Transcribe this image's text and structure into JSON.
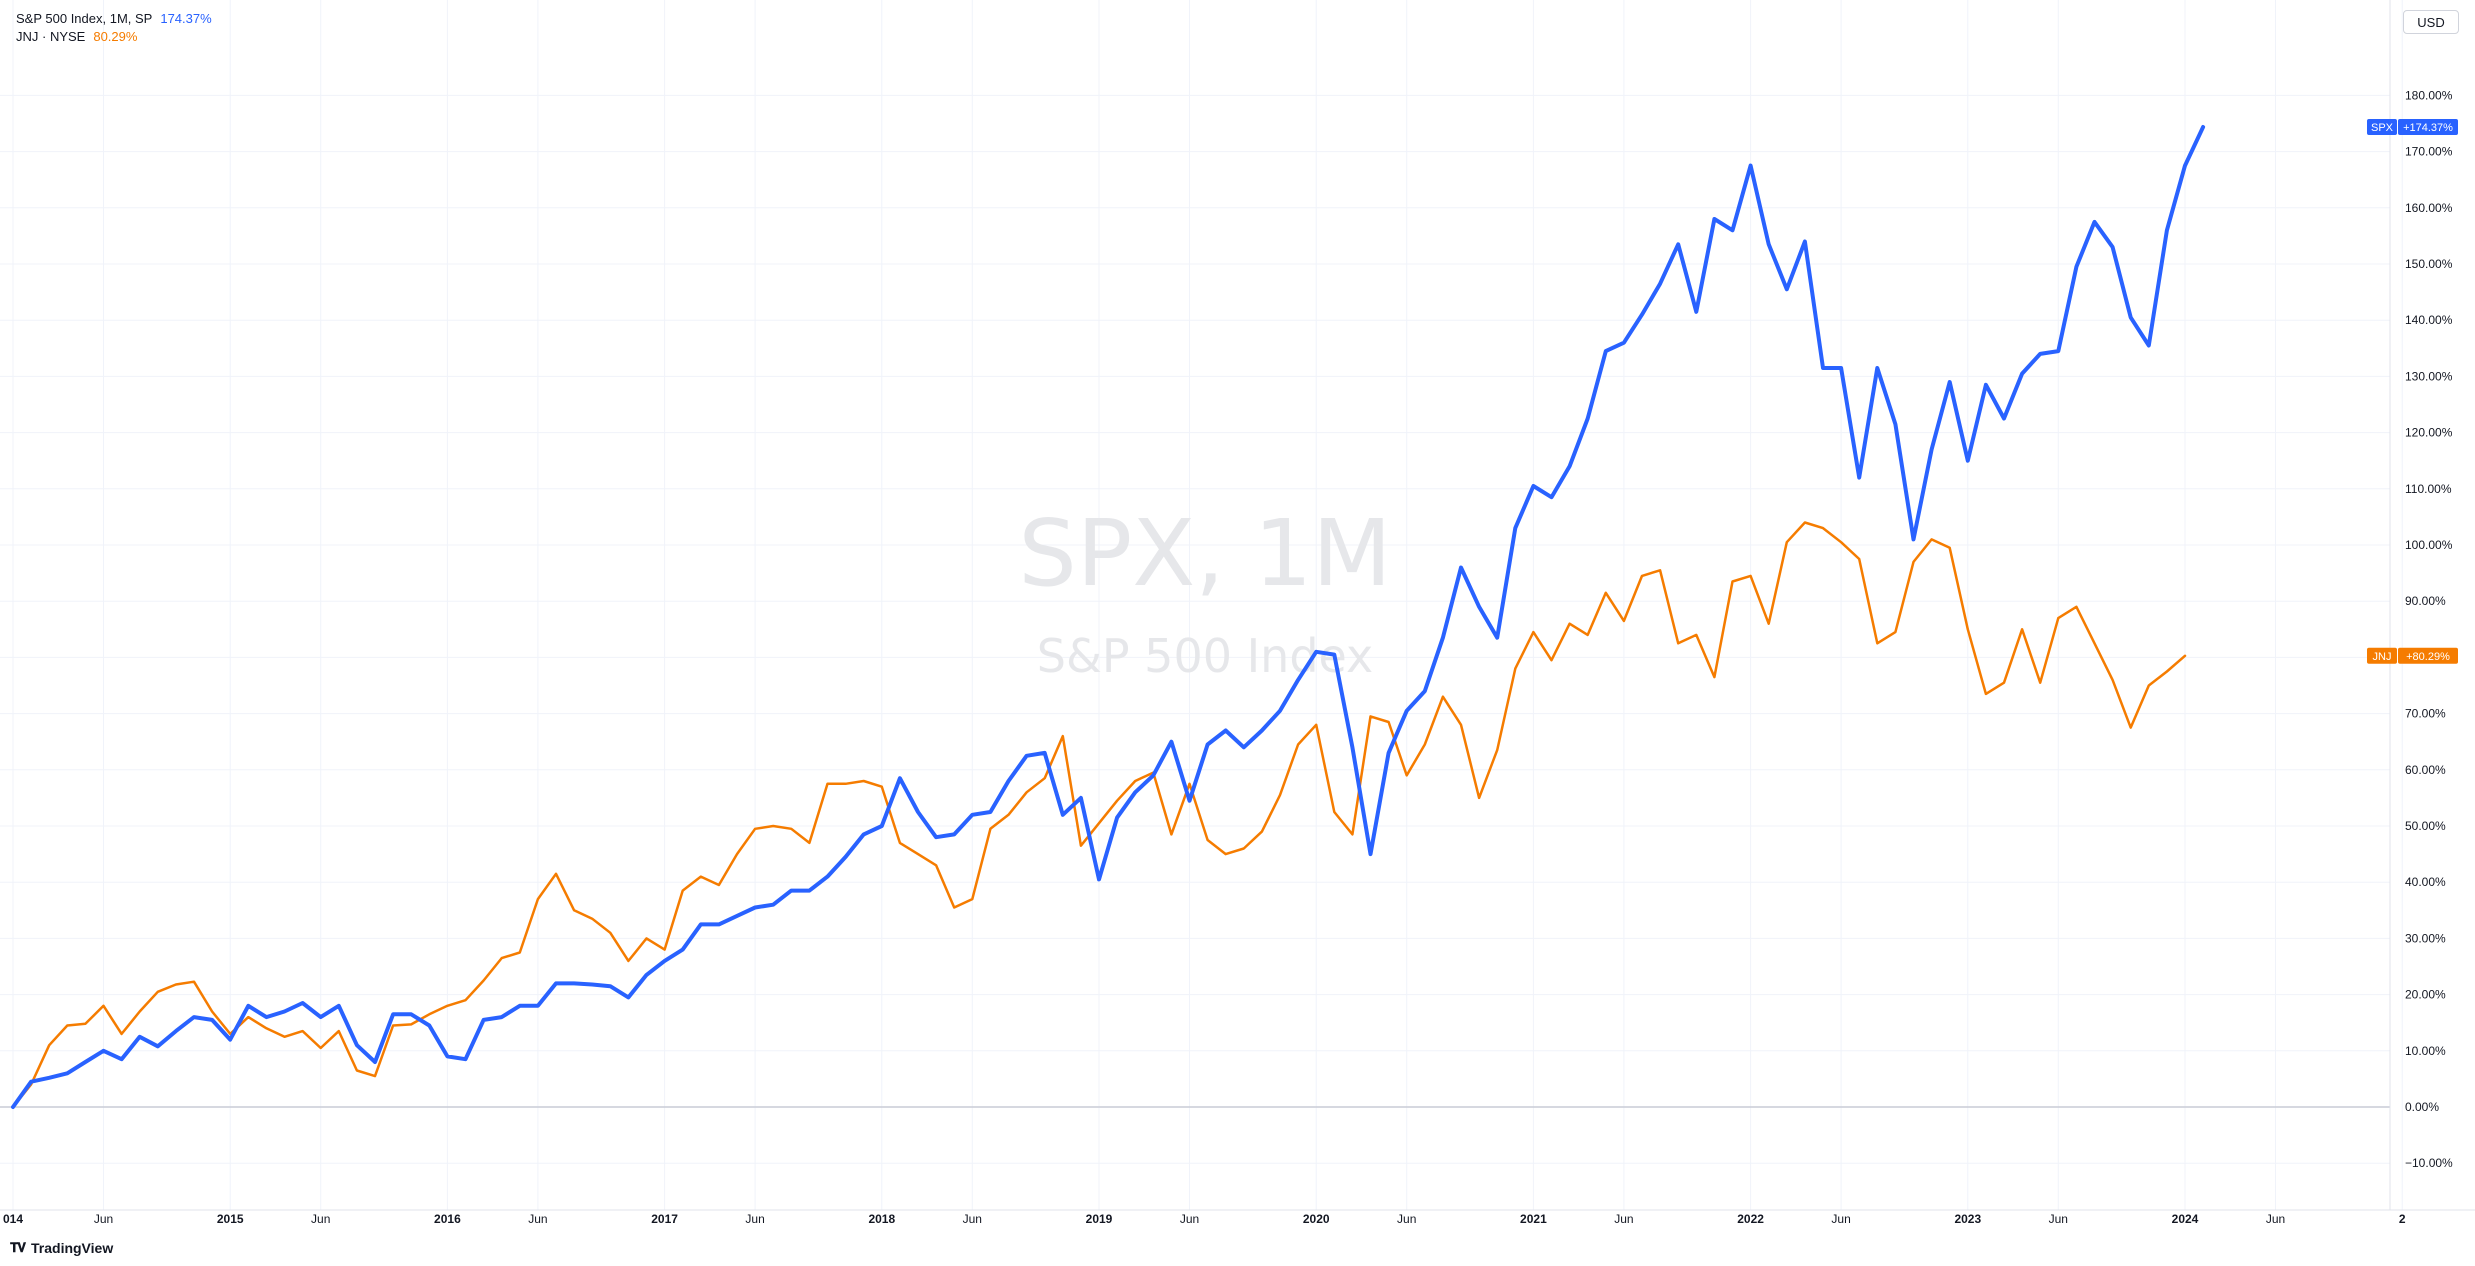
{
  "legend": {
    "spx": {
      "name": "S&P 500 Index, 1M, SP",
      "value": "174.37%"
    },
    "jnj": {
      "name": "JNJ · NYSE",
      "value": "80.29%"
    }
  },
  "currency_label": "USD",
  "watermark": {
    "title": "SPX, 1M",
    "subtitle": "S&P 500 Index"
  },
  "branding": {
    "text": "TradingView",
    "icon": "tradingview-logo-icon"
  },
  "colors": {
    "spx": "#2962ff",
    "jnj": "#f57c00",
    "grid": "#f0f3fa",
    "zero_line": "#c9ccd6",
    "text": "#131722"
  },
  "chart_data": {
    "type": "line",
    "ylim": [
      -15,
      190
    ],
    "xlim": [
      "2014-01",
      "2024-12"
    ],
    "y_ticks": [
      -10,
      0,
      10,
      20,
      30,
      40,
      50,
      60,
      70,
      80,
      90,
      100,
      110,
      120,
      130,
      140,
      150,
      160,
      170,
      180
    ],
    "y_tick_labels": [
      "−10.00%",
      "0.00%",
      "10.00%",
      "20.00%",
      "30.00%",
      "40.00%",
      "50.00%",
      "60.00%",
      "70.00%",
      "80.00%",
      "90.00%",
      "100.00%",
      "110.00%",
      "120.00%",
      "130.00%",
      "140.00%",
      "150.00%",
      "160.00%",
      "170.00%",
      "180.00%"
    ],
    "x_ticks": [
      {
        "x": "2014-01",
        "label": "014"
      },
      {
        "x": "2014-06",
        "label": "Jun"
      },
      {
        "x": "2015-01",
        "label": "2015"
      },
      {
        "x": "2015-06",
        "label": "Jun"
      },
      {
        "x": "2016-01",
        "label": "2016"
      },
      {
        "x": "2016-06",
        "label": "Jun"
      },
      {
        "x": "2017-01",
        "label": "2017"
      },
      {
        "x": "2017-06",
        "label": "Jun"
      },
      {
        "x": "2018-01",
        "label": "2018"
      },
      {
        "x": "2018-06",
        "label": "Jun"
      },
      {
        "x": "2019-01",
        "label": "2019"
      },
      {
        "x": "2019-06",
        "label": "Jun"
      },
      {
        "x": "2020-01",
        "label": "2020"
      },
      {
        "x": "2020-06",
        "label": "Jun"
      },
      {
        "x": "2021-01",
        "label": "2021"
      },
      {
        "x": "2021-06",
        "label": "Jun"
      },
      {
        "x": "2022-01",
        "label": "2022"
      },
      {
        "x": "2022-06",
        "label": "Jun"
      },
      {
        "x": "2023-01",
        "label": "2023"
      },
      {
        "x": "2023-06",
        "label": "Jun"
      },
      {
        "x": "2024-01",
        "label": "2024"
      },
      {
        "x": "2024-06",
        "label": "Jun"
      },
      {
        "x": "2025-01",
        "label": "2"
      }
    ],
    "start": "2014-01",
    "series": [
      {
        "name": "SPX",
        "price_label": "+174.37%",
        "values": [
          0,
          4.5,
          5.2,
          6,
          8,
          10,
          8.5,
          12.5,
          10.8,
          13.5,
          16,
          15.5,
          12,
          18,
          16,
          17,
          18.5,
          16,
          18,
          11,
          8,
          16.5,
          16.5,
          14.5,
          9,
          8.5,
          15.5,
          16,
          18,
          18,
          22,
          22,
          21.8,
          21.5,
          19.5,
          23.5,
          26,
          28,
          32.5,
          32.5,
          34,
          35.5,
          36,
          38.5,
          38.5,
          41,
          44.5,
          48.5,
          50,
          58.5,
          52.5,
          48,
          48.5,
          52,
          52.5,
          58,
          62.5,
          63,
          52,
          55,
          40.5,
          51.5,
          56,
          59,
          65,
          54.5,
          64.5,
          67,
          64,
          67,
          70.5,
          76,
          81,
          80.5,
          64,
          45,
          63,
          70.5,
          74,
          83.5,
          96,
          89,
          83.5,
          103,
          110.5,
          108.5,
          114,
          122.5,
          134.5,
          136,
          141,
          146.5,
          153.5,
          141.5,
          158,
          156,
          167.5,
          153.5,
          145.5,
          154,
          131.5,
          131.5,
          112,
          131.5,
          121.5,
          101,
          117,
          129,
          115,
          128.5,
          122.5,
          130.5,
          134,
          134.5,
          149.5,
          157.5,
          153,
          140.5,
          135.5,
          156,
          167.5,
          174.37
        ]
      },
      {
        "name": "JNJ",
        "price_label": "+80.29%",
        "values": [
          0,
          4,
          11,
          14.5,
          14.8,
          18,
          13,
          17,
          20.5,
          21.8,
          22.3,
          17,
          13,
          16,
          14,
          12.5,
          13.5,
          10.5,
          13.5,
          6.5,
          5.5,
          14.5,
          14.7,
          16.5,
          18,
          19,
          22.5,
          26.5,
          27.5,
          37,
          41.5,
          35,
          33.5,
          31,
          26,
          30,
          28,
          38.5,
          41,
          39.5,
          45,
          49.5,
          50,
          49.5,
          47,
          57.5,
          57.5,
          58,
          57,
          47,
          45,
          43,
          35.5,
          37,
          49.5,
          52,
          56,
          58.5,
          66,
          46.5,
          50.5,
          54.5,
          58,
          59.5,
          48.5,
          57.5,
          47.5,
          45,
          46,
          49,
          55.5,
          64.5,
          68,
          52.5,
          48.5,
          69.5,
          68.5,
          59,
          64.5,
          73,
          68,
          55,
          63.5,
          78,
          84.5,
          79.5,
          86,
          84,
          91.5,
          86.5,
          94.5,
          95.5,
          82.5,
          84,
          76.5,
          93.5,
          94.5,
          86,
          100.5,
          104,
          103,
          100.5,
          97.5,
          82.5,
          84.5,
          97,
          101,
          99.5,
          85,
          73.5,
          75.5,
          85,
          75.5,
          87,
          89,
          82.5,
          76,
          67.5,
          75,
          77.5,
          80.29
        ]
      }
    ]
  }
}
